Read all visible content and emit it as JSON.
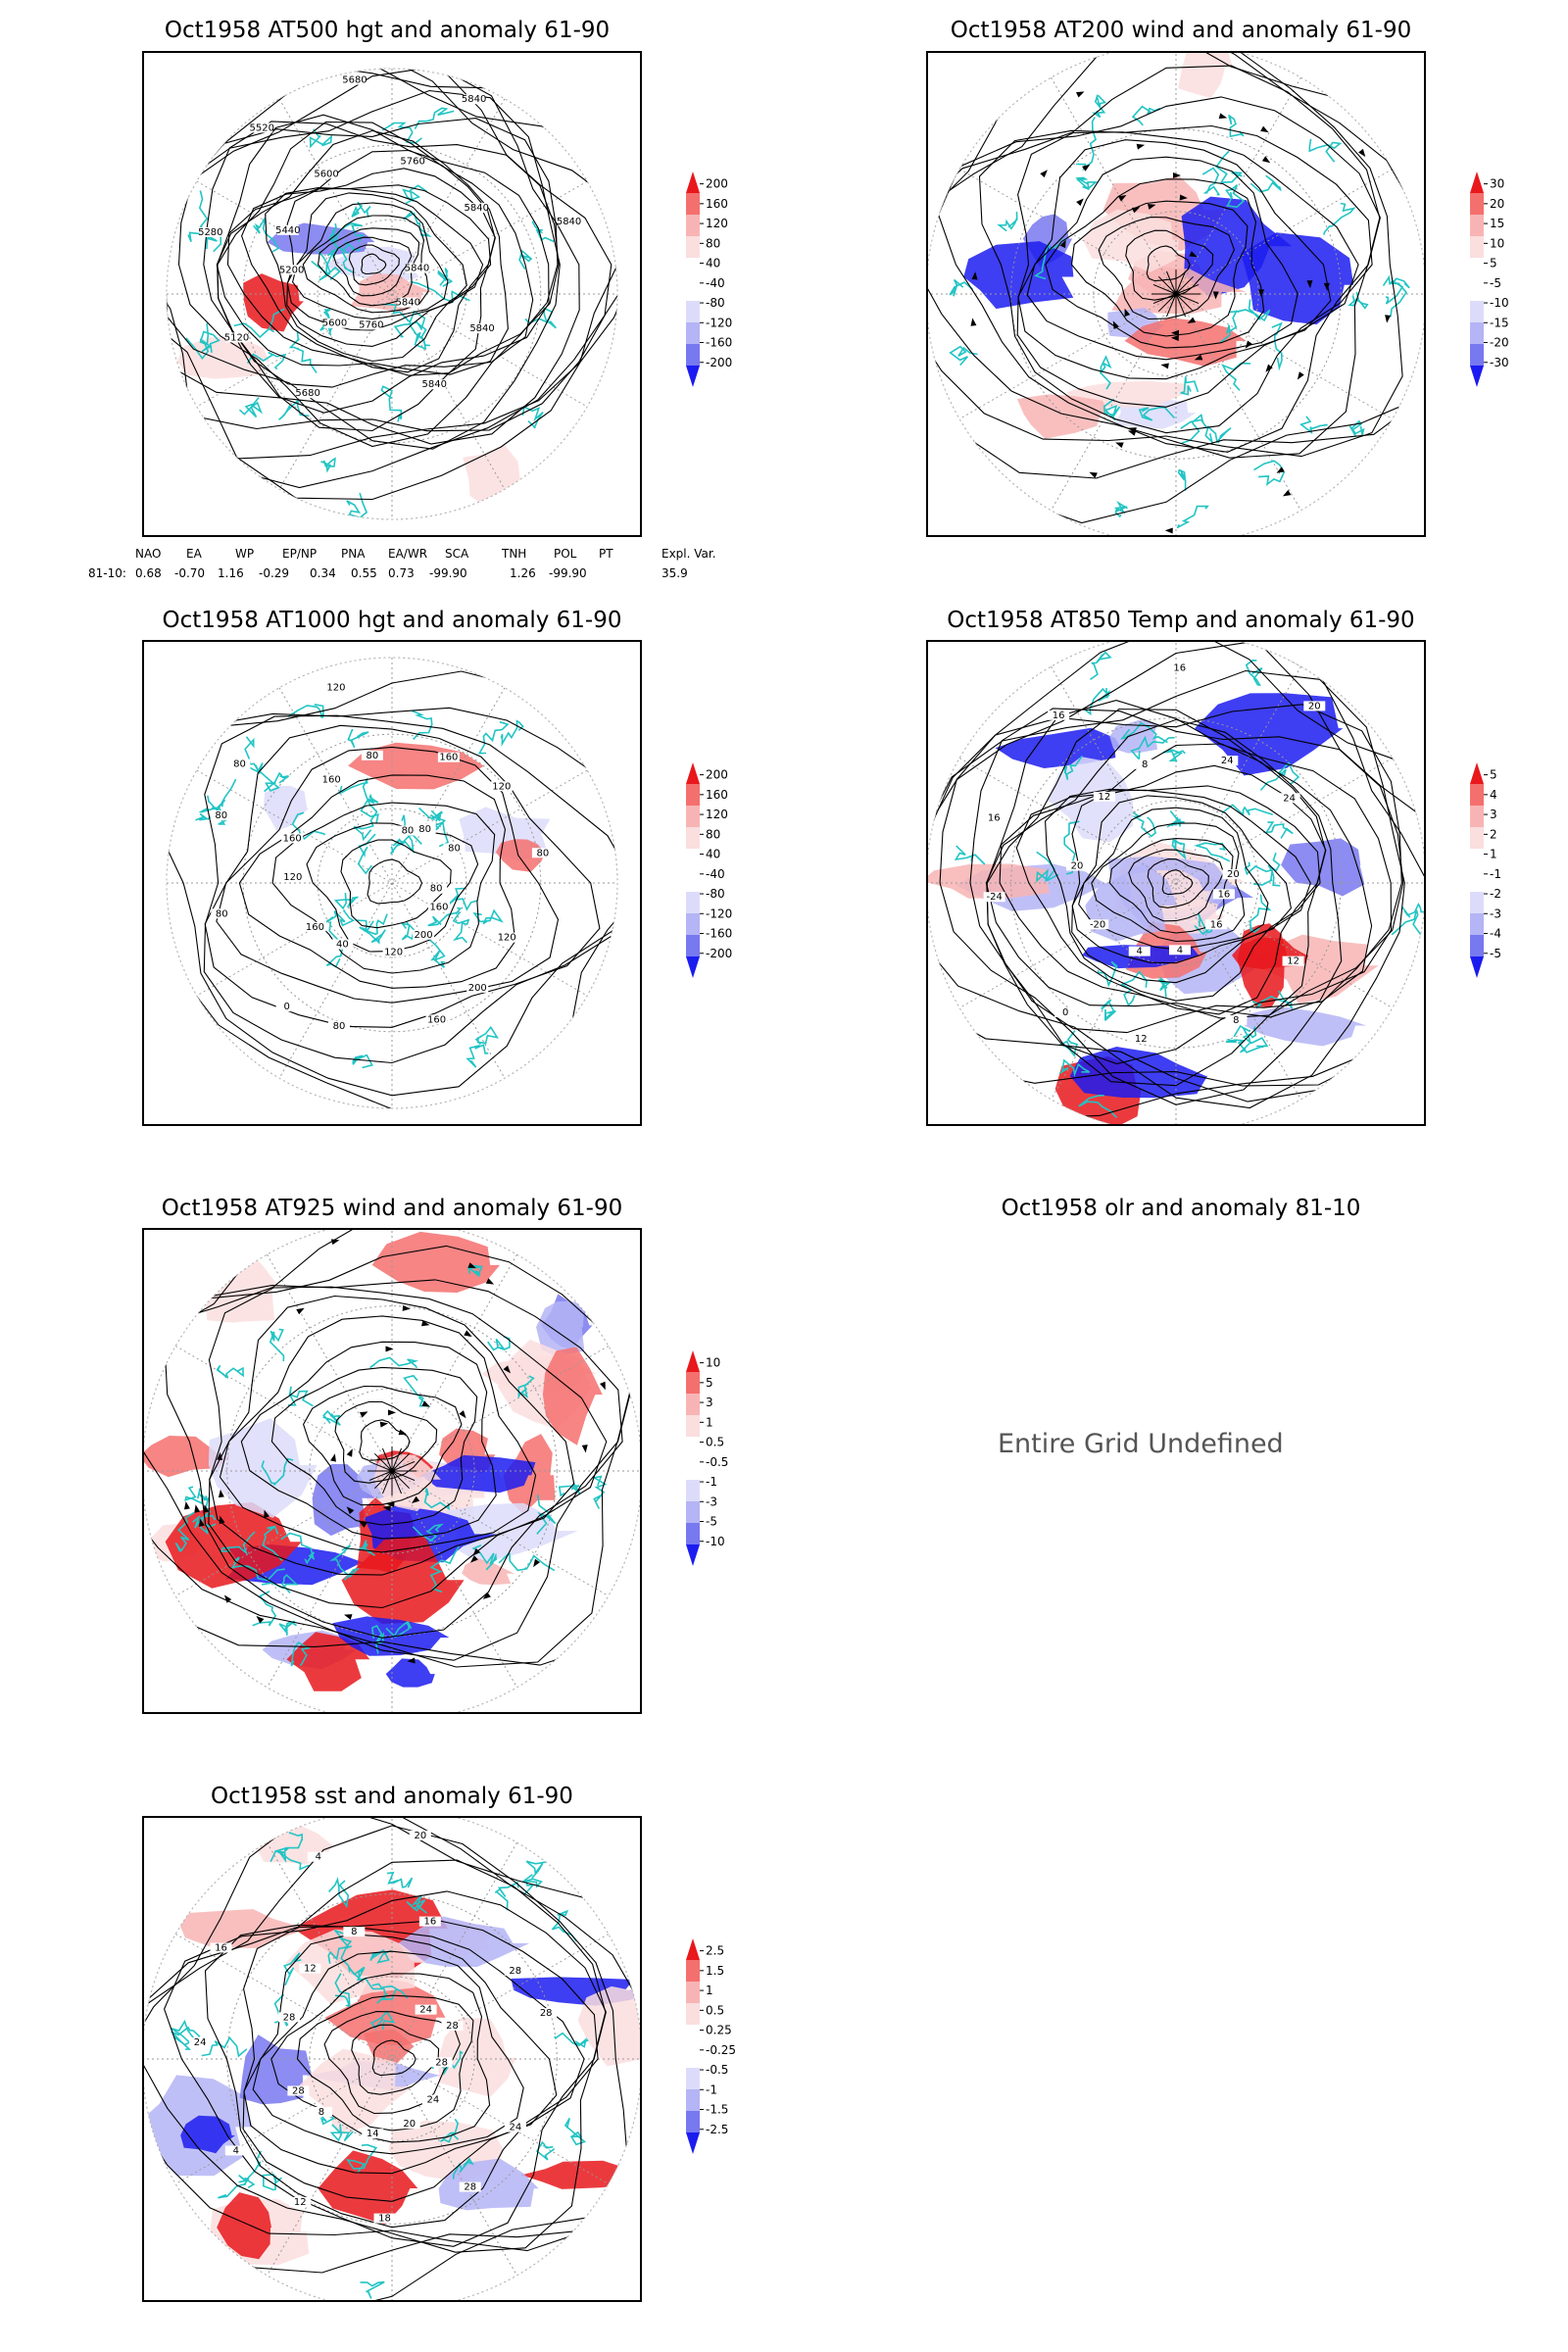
{
  "colors": {
    "coast": "#22c4c4",
    "contour": "#000000",
    "pos_strong": "#e8181c",
    "pos_mid": "#f4706e",
    "pos_light": "#f8b4b4",
    "pos_faint": "#fbdede",
    "neg_faint": "#dcdcfa",
    "neg_light": "#b4b4f6",
    "neg_mid": "#7878f0",
    "neg_strong": "#1c1cf0"
  },
  "panels": [
    {
      "id": "z500",
      "title": "Oct1958 AT500 hgt and anomaly 61-90",
      "colorbar": [
        "200",
        "160",
        "120",
        "80",
        "40",
        "-40",
        "-80",
        "-120",
        "-160",
        "-200"
      ],
      "contour_labels": [
        "5840",
        "5840",
        "5840",
        "5840",
        "5760",
        "5680",
        "5600",
        "5120",
        "5200",
        "5280",
        "5440",
        "5520",
        "5600",
        "5680",
        "5760",
        "5840",
        "5840",
        "5840"
      ]
    },
    {
      "id": "u200",
      "title": "Oct1958 AT200 wind and anomaly 61-90",
      "colorbar": [
        "30",
        "20",
        "15",
        "10",
        "5",
        "-5",
        "-10",
        "-15",
        "-20",
        "-30"
      ],
      "contour_labels": []
    },
    {
      "id": "z1000",
      "title": "Oct1958 AT1000 hgt and anomaly 61-90",
      "colorbar": [
        "200",
        "160",
        "120",
        "80",
        "40",
        "-40",
        "-80",
        "-120",
        "-160",
        "-200"
      ],
      "contour_labels": [
        "80",
        "120",
        "160",
        "200",
        "200",
        "160",
        "120",
        "80",
        "40",
        "0",
        "160",
        "80",
        "120",
        "80",
        "160",
        "80",
        "160",
        "120",
        "80",
        "80",
        "160",
        "80",
        "120",
        "80",
        "80"
      ]
    },
    {
      "id": "t850",
      "title": "Oct1958 AT850 Temp and anomaly 61-90",
      "colorbar": [
        "5",
        "4",
        "3",
        "2",
        "1",
        "-1",
        "-2",
        "-3",
        "-4",
        "-5"
      ],
      "contour_labels": [
        "16",
        "12",
        "16",
        "8",
        "4",
        "12",
        "4",
        "0",
        "-20",
        "-24",
        "20",
        "16",
        "12",
        "16",
        "8",
        "16",
        "24",
        "20",
        "24",
        "20"
      ]
    },
    {
      "id": "u925",
      "title": "Oct1958 AT925 wind and anomaly 61-90",
      "colorbar": [
        "10",
        "5",
        "3",
        "1",
        "0.5",
        "-0.5",
        "-1",
        "-3",
        "-5",
        "-10"
      ],
      "contour_labels": []
    },
    {
      "id": "olr",
      "title": "Oct1958 olr and anomaly 81-10",
      "undefined_text": "Entire Grid Undefined"
    },
    {
      "id": "sst",
      "title": "Oct1958 sst and anomaly 61-90",
      "colorbar": [
        "2.5",
        "1.5",
        "1",
        "0.5",
        "0.25",
        "-0.25",
        "-0.5",
        "-1",
        "-1.5",
        "-2.5"
      ],
      "contour_labels": [
        "28",
        "24",
        "24",
        "28",
        "20",
        "18",
        "14",
        "12",
        "8",
        "4",
        "28",
        "24",
        "28",
        "16",
        "12",
        "4",
        "8",
        "20",
        "16",
        "24",
        "28",
        "28",
        "28"
      ]
    }
  ],
  "teleconnections": {
    "headers": [
      "NAO",
      "EA",
      "WP",
      "EP/NP",
      "PNA",
      "EA/WR",
      "SCA",
      "TNH",
      "POL",
      "PT",
      "Expl. Var."
    ],
    "row_label": "81-10:",
    "values": [
      "0.68",
      "-0.70",
      "1.16",
      "-0.29",
      "0.34",
      "0.55",
      "0.73",
      "-99.90",
      "1.26",
      "-99.90",
      "35.9"
    ]
  }
}
